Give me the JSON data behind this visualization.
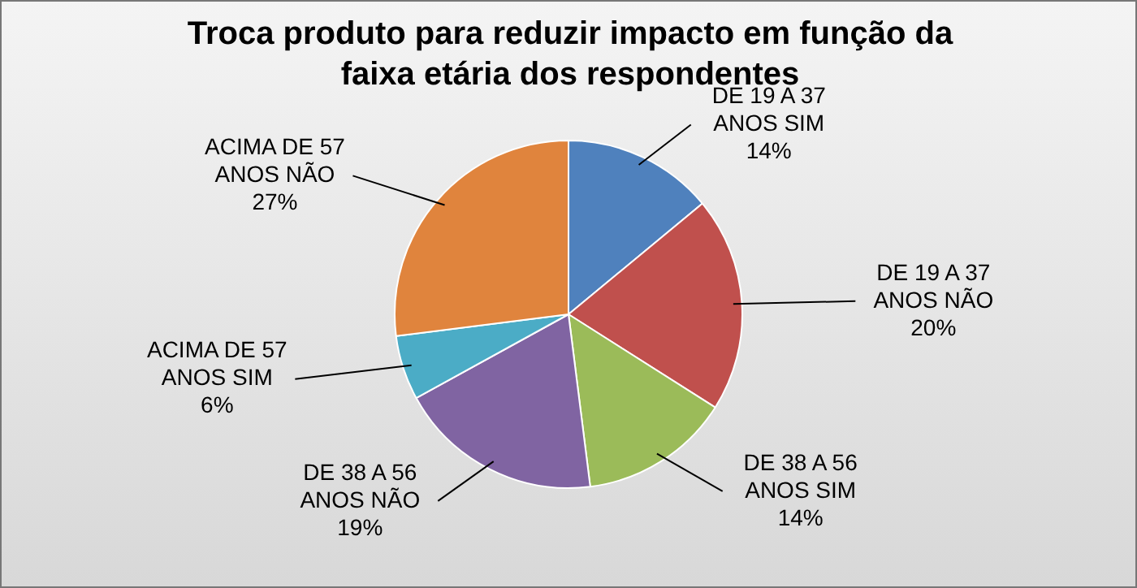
{
  "chart_data": {
    "type": "pie",
    "title": "Troca produto para reduzir impacto em função da faixa etária dos respondentes",
    "categories": [
      "DE 19 A 37 ANOS SIM",
      "DE 19 A 37 ANOS NÃO",
      "DE 38 A 56 ANOS SIM",
      "DE 38 A 56 ANOS NÃO",
      "ACIMA DE 57 ANOS SIM",
      "ACIMA DE 57 ANOS NÃO"
    ],
    "values": [
      14,
      20,
      14,
      19,
      6,
      27
    ],
    "value_labels": [
      "14%",
      "20%",
      "14%",
      "19%",
      "6%",
      "27%"
    ],
    "colors": [
      "#4f81bd",
      "#c0504d",
      "#9bbb59",
      "#8064a2",
      "#4bacc6",
      "#e0843d"
    ],
    "legend": false
  }
}
